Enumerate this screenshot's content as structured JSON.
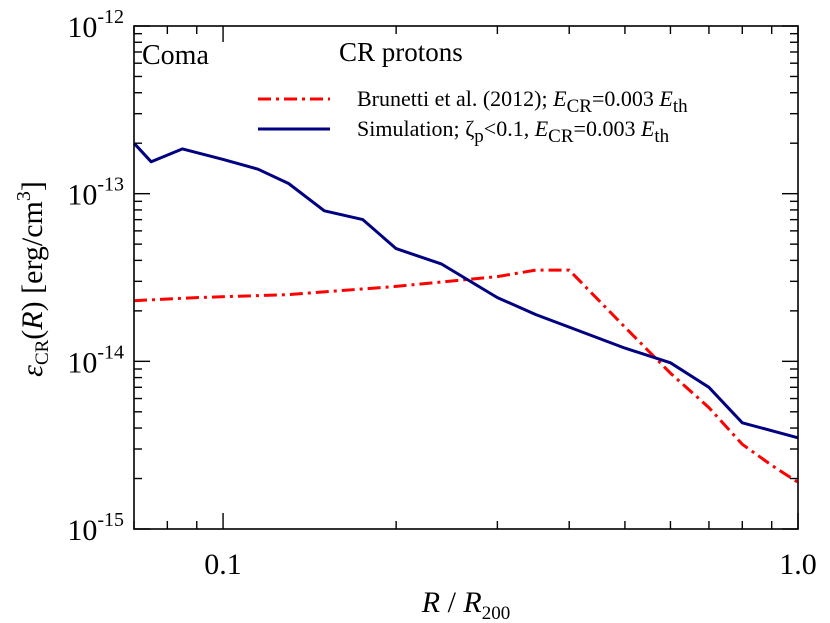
{
  "chart_data": {
    "type": "line",
    "panel_label": "Coma",
    "legend_title": "CR protons",
    "legend_placement": "top-right",
    "x_scale": "log",
    "y_scale": "log",
    "xlim": [
      0.07,
      1.0
    ],
    "ylim": [
      1e-15,
      1e-12
    ],
    "xlabel": {
      "var": "R",
      "sep": " / ",
      "var2": "R",
      "sub": "200"
    },
    "ylabel": {
      "sym": "ε",
      "sub": "CR",
      "arg_open": "(",
      "arg": "R",
      "arg_close": ")",
      "units": " [erg/cm",
      "units_sup": "3",
      "units_close": "]"
    },
    "x_tick_labels": [
      {
        "value": 0.1,
        "label": "0.1"
      },
      {
        "value": 1.0,
        "label": "1.0"
      }
    ],
    "y_tick_labels": [
      {
        "value": 1e-12,
        "base": "10",
        "exp": "-12"
      },
      {
        "value": 1e-13,
        "base": "10",
        "exp": "-13"
      },
      {
        "value": 1e-14,
        "base": "10",
        "exp": "-14"
      },
      {
        "value": 1e-15,
        "base": "10",
        "exp": "-15"
      }
    ],
    "series": [
      {
        "key": "brunetti",
        "name": "Brunetti et al. (2012);  E_CR=0.003  E_th",
        "legend_parts": {
          "pre": "Brunetti et al. (2012);  ",
          "e": "E",
          "e_sub": "CR",
          "mid": "=0.003  ",
          "e2": "E",
          "e2_sub": "th"
        },
        "color": "#ff0000",
        "dash": "dash-dot",
        "x": [
          0.07,
          0.09,
          0.13,
          0.2,
          0.3,
          0.35,
          0.4,
          0.5,
          0.6,
          0.7,
          0.8,
          0.9,
          1.0
        ],
        "y": [
          2.3e-14,
          2.4e-14,
          2.5e-14,
          2.8e-14,
          3.2e-14,
          3.5e-14,
          3.5e-14,
          1.6e-14,
          8.5e-15,
          5.3e-15,
          3.2e-15,
          2.4e-15,
          1.9e-15
        ]
      },
      {
        "key": "simulation",
        "name": "Simulation;  ζ_p<0.1,  E_CR=0.003  E_th",
        "legend_parts": {
          "pre": "Simulation;  ",
          "z": "ζ",
          "z_sub": "p",
          "mid1": "<0.1,  ",
          "e": "E",
          "e_sub": "CR",
          "mid2": "=0.003  ",
          "e2": "E",
          "e2_sub": "th"
        },
        "color": "#000080",
        "dash": "solid",
        "x": [
          0.07,
          0.075,
          0.085,
          0.1,
          0.115,
          0.13,
          0.15,
          0.175,
          0.2,
          0.24,
          0.3,
          0.35,
          0.4,
          0.5,
          0.6,
          0.7,
          0.8,
          1.0
        ],
        "y": [
          2e-13,
          1.55e-13,
          1.85e-13,
          1.6e-13,
          1.4e-13,
          1.15e-13,
          7.9e-14,
          7e-14,
          4.7e-14,
          3.8e-14,
          2.4e-14,
          1.9e-14,
          1.6e-14,
          1.2e-14,
          9.8e-15,
          7e-15,
          4.3e-15,
          3.5e-15
        ]
      }
    ]
  }
}
